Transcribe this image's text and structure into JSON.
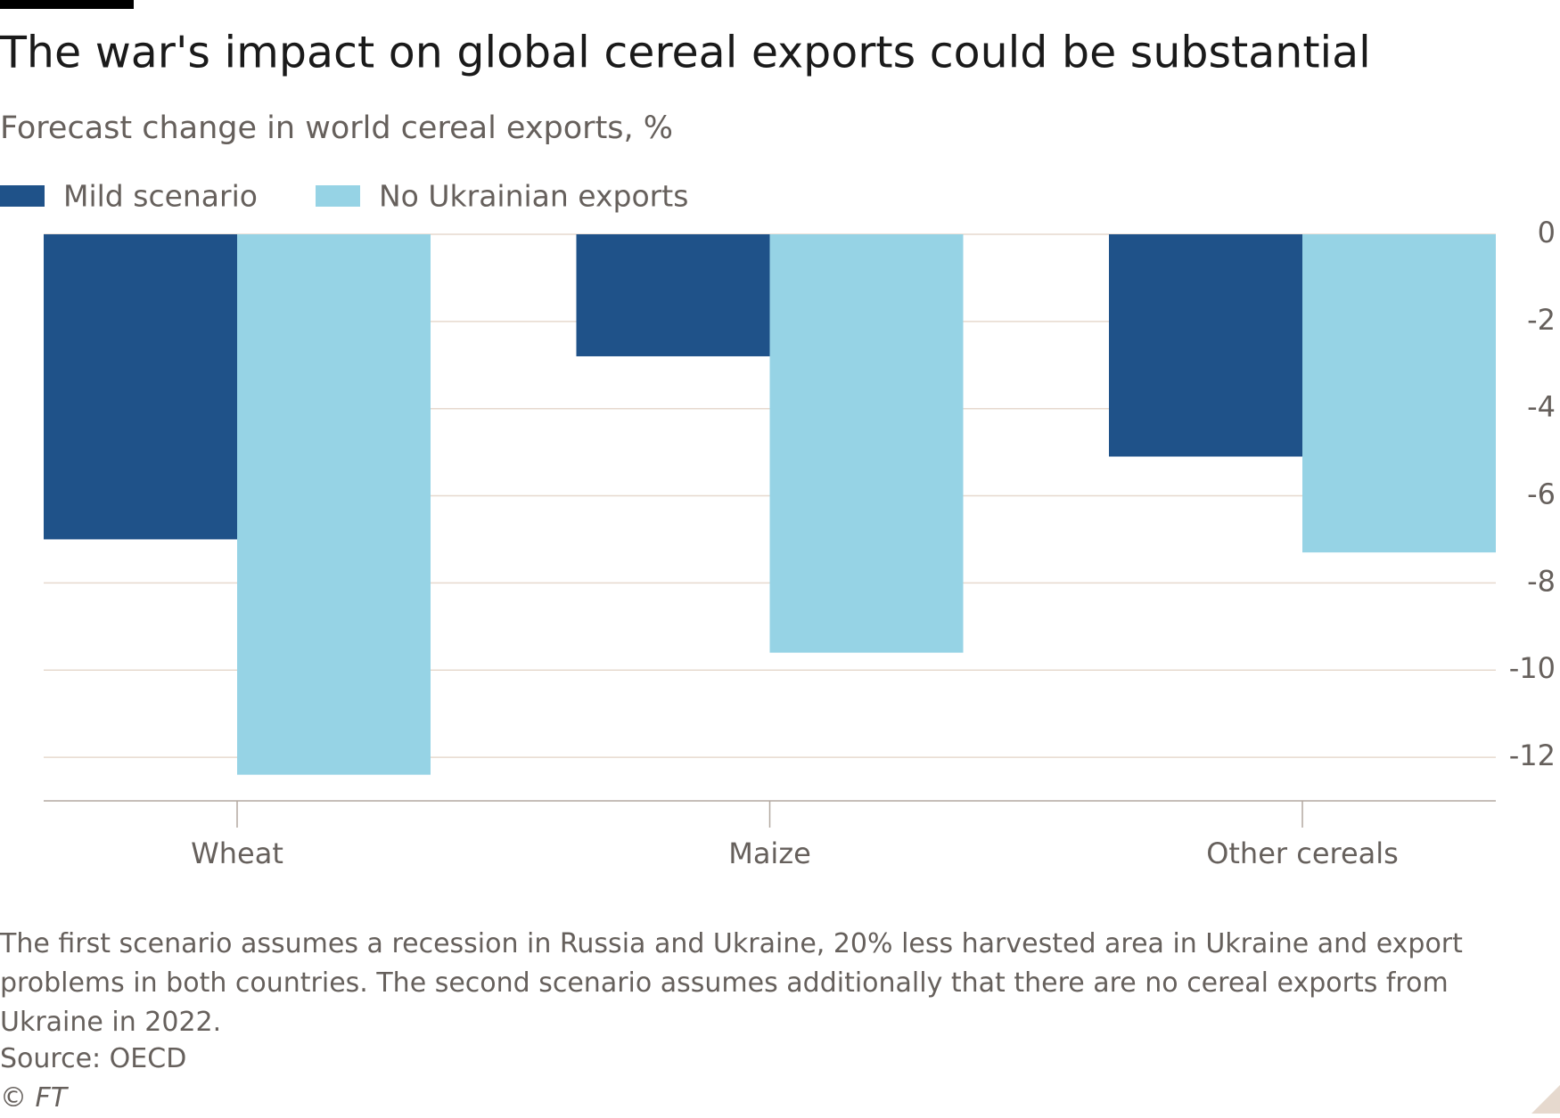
{
  "chart_data": {
    "type": "bar",
    "title": "The war's impact on global cereal exports could be substantial",
    "subtitle": "Forecast change in world cereal exports, %",
    "categories": [
      "Wheat",
      "Maize",
      "Other cereals"
    ],
    "series": [
      {
        "name": "Mild scenario",
        "color": "#1f5289",
        "values": [
          -7.0,
          -2.8,
          -5.1
        ]
      },
      {
        "name": "No Ukrainian exports",
        "color": "#96d3e5",
        "values": [
          -12.4,
          -9.6,
          -7.3
        ]
      }
    ],
    "ylim": [
      -13,
      0
    ],
    "yticks": [
      0,
      -2,
      -4,
      -6,
      -8,
      -10,
      -12
    ],
    "grid": true,
    "note": "The first scenario assumes a recession in Russia and Ukraine, 20% less harvested area in Ukraine and export problems in both countries. The second scenario assumes additionally that there are no cereal exports from Ukraine in 2022.",
    "source": "Source: OECD",
    "credit": "© FT"
  }
}
